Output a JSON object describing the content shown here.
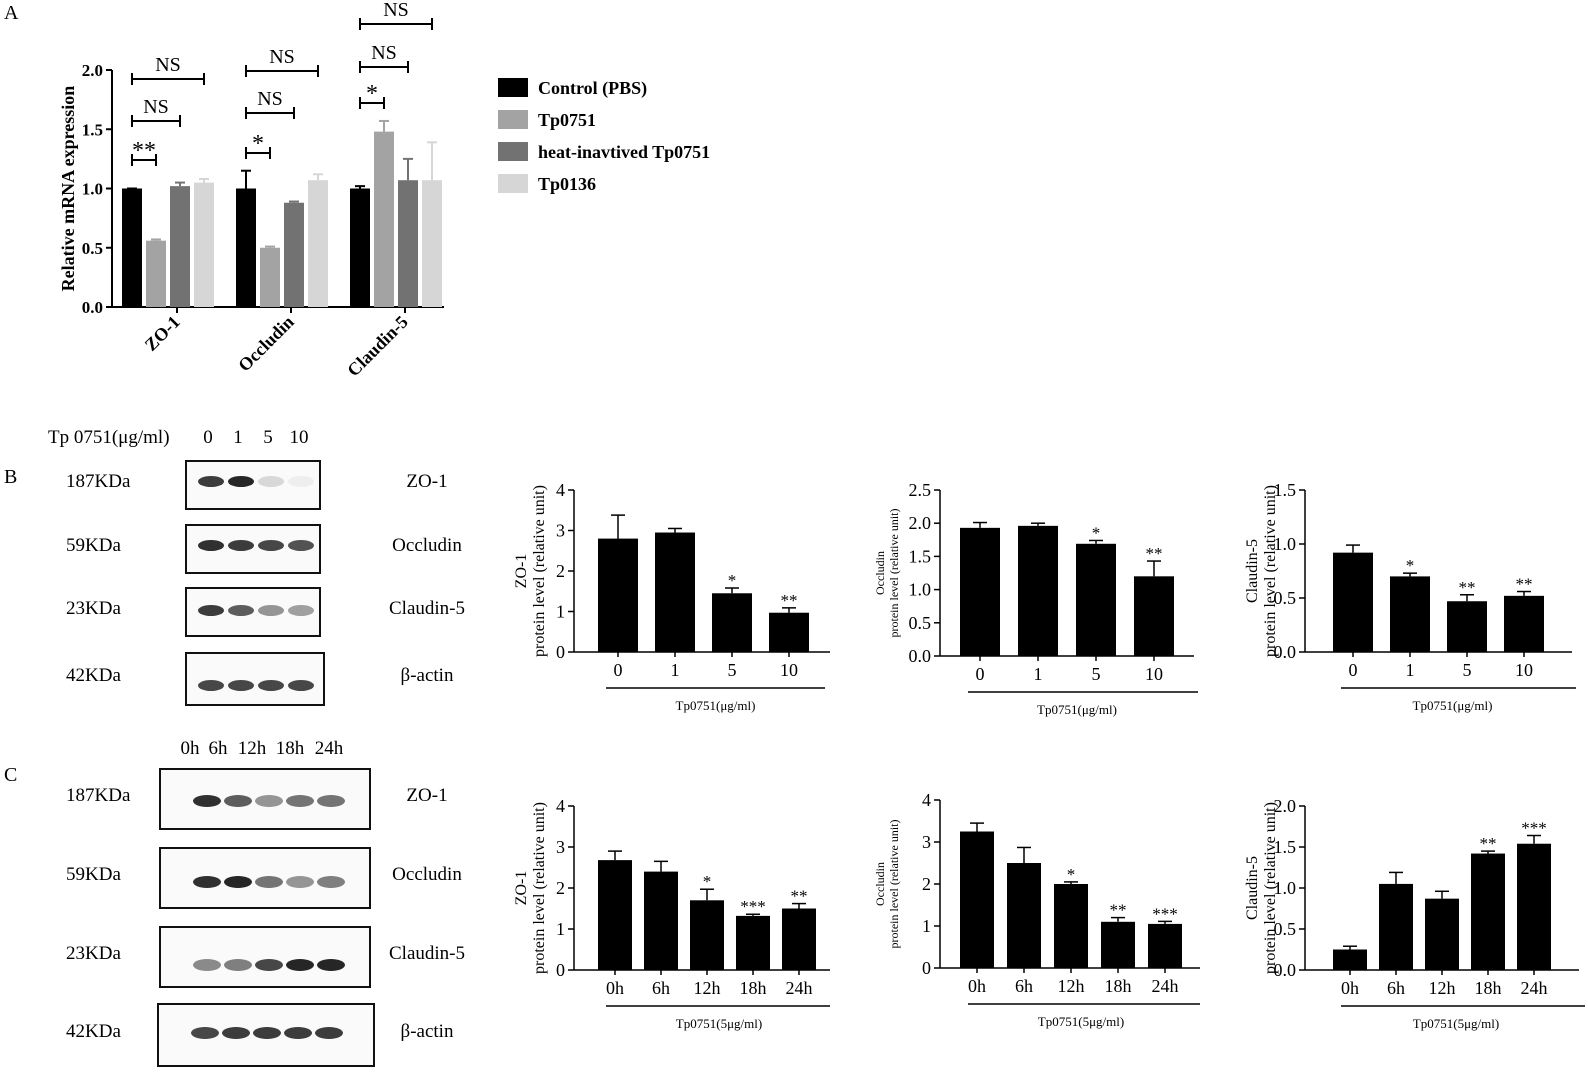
{
  "panels": {
    "a": "A",
    "b": "B",
    "c": "C"
  },
  "colors": {
    "control": "#000000",
    "tp0751": "#a3a3a3",
    "heat": "#727272",
    "tp0136": "#d6d6d6",
    "bar": "#000000"
  },
  "western_b": {
    "header_label": "Tp 0751(μg/ml)",
    "lanes": [
      "0",
      "1",
      "5",
      "10"
    ],
    "mw": [
      "187KDa",
      "59KDa",
      "23KDa",
      "42KDa"
    ],
    "proteins": [
      "ZO-1",
      "Occludin",
      "Claudin-5",
      "β-actin"
    ],
    "intensity": [
      [
        0.85,
        0.95,
        0.15,
        0.05
      ],
      [
        0.9,
        0.85,
        0.8,
        0.75
      ],
      [
        0.85,
        0.7,
        0.45,
        0.4
      ],
      [
        0.8,
        0.8,
        0.8,
        0.8
      ]
    ]
  },
  "western_c": {
    "lanes": [
      "0h",
      "6h",
      "12h",
      "18h",
      "24h"
    ],
    "mw": [
      "187KDa",
      "59KDa",
      "23KDa",
      "42KDa"
    ],
    "proteins": [
      "ZO-1",
      "Occludin",
      "Claudin-5",
      "β-actin"
    ],
    "intensity": [
      [
        0.9,
        0.7,
        0.45,
        0.6,
        0.6
      ],
      [
        0.9,
        0.95,
        0.6,
        0.45,
        0.55
      ],
      [
        0.5,
        0.55,
        0.8,
        0.95,
        0.95
      ],
      [
        0.8,
        0.85,
        0.85,
        0.85,
        0.85
      ]
    ]
  },
  "chart_data": [
    {
      "id": "A",
      "type": "bar",
      "ylabel": "Relative mRNA expression",
      "ylim": [
        0,
        2.0
      ],
      "yticks": [
        "0.0",
        "0.5",
        "1.0",
        "1.5",
        "2.0"
      ],
      "categories": [
        "ZO-1",
        "Occludin",
        "Claudin-5"
      ],
      "series": [
        {
          "name": "Control (PBS)",
          "values": [
            1.0,
            1.0,
            1.0
          ],
          "errors": [
            0.0,
            0.15,
            0.02
          ]
        },
        {
          "name": "Tp0751",
          "values": [
            0.56,
            0.5,
            1.48
          ],
          "errors": [
            0.01,
            0.01,
            0.09
          ]
        },
        {
          "name": "heat-inavtived Tp0751",
          "values": [
            1.02,
            0.88,
            1.07
          ],
          "errors": [
            0.03,
            0.01,
            0.18
          ]
        },
        {
          "name": "Tp0136",
          "values": [
            1.05,
            1.07,
            1.07
          ],
          "errors": [
            0.03,
            0.05,
            0.32
          ]
        }
      ],
      "annotations": [
        "**",
        "NS",
        "NS",
        "*",
        "NS",
        "NS",
        "*",
        "NS",
        "NS"
      ],
      "legend": "right"
    },
    {
      "id": "B1",
      "type": "bar",
      "ylabel_lines": [
        "ZO-1",
        "protein level (relative unit)"
      ],
      "xlabel": "Tp0751(μg/ml)",
      "categories": [
        "0",
        "1",
        "5",
        "10"
      ],
      "values": [
        2.8,
        2.95,
        1.45,
        0.97
      ],
      "errors": [
        0.58,
        0.1,
        0.13,
        0.12
      ],
      "sig": [
        "",
        "",
        "*",
        "**"
      ],
      "ylim": [
        0,
        4
      ],
      "yticks": [
        "0",
        "1",
        "2",
        "3",
        "4"
      ]
    },
    {
      "id": "B2",
      "type": "bar",
      "ylabel_lines": [
        "Occludin",
        "protein level (relative unit)"
      ],
      "xlabel": "Tp0751(μg/ml)",
      "categories": [
        "0",
        "1",
        "5",
        "10"
      ],
      "values": [
        1.93,
        1.96,
        1.69,
        1.2
      ],
      "errors": [
        0.08,
        0.04,
        0.05,
        0.23
      ],
      "sig": [
        "",
        "",
        "*",
        "**"
      ],
      "ylim": [
        0,
        2.5
      ],
      "yticks": [
        "0.0",
        "0.5",
        "1.0",
        "1.5",
        "2.0",
        "2.5"
      ]
    },
    {
      "id": "B3",
      "type": "bar",
      "ylabel_lines": [
        "Claudin-5",
        "protein level (relative unit)"
      ],
      "xlabel": "Tp0751(μg/ml)",
      "categories": [
        "0",
        "1",
        "5",
        "10"
      ],
      "values": [
        0.92,
        0.7,
        0.47,
        0.52
      ],
      "errors": [
        0.07,
        0.03,
        0.06,
        0.04
      ],
      "sig": [
        "",
        "*",
        "**",
        "**"
      ],
      "ylim": [
        0,
        1.5
      ],
      "yticks": [
        "0.0",
        "0.5",
        "1.0",
        "1.5"
      ]
    },
    {
      "id": "C1",
      "type": "bar",
      "ylabel_lines": [
        "ZO-1",
        "protein level (relative unit)"
      ],
      "xlabel": "Tp0751(5μg/ml)",
      "categories": [
        "0h",
        "6h",
        "12h",
        "18h",
        "24h"
      ],
      "values": [
        2.68,
        2.4,
        1.7,
        1.32,
        1.5
      ],
      "errors": [
        0.22,
        0.25,
        0.27,
        0.04,
        0.12
      ],
      "sig": [
        "",
        "",
        "*",
        "***",
        "**"
      ],
      "ylim": [
        0,
        4
      ],
      "yticks": [
        "0",
        "1",
        "2",
        "3",
        "4"
      ]
    },
    {
      "id": "C2",
      "type": "bar",
      "ylabel_lines": [
        "Occludin",
        "protein level (relative unit)"
      ],
      "xlabel": "Tp0751(5μg/ml)",
      "categories": [
        "0h",
        "6h",
        "12h",
        "18h",
        "24h"
      ],
      "values": [
        3.25,
        2.5,
        2.0,
        1.1,
        1.05
      ],
      "errors": [
        0.2,
        0.37,
        0.05,
        0.1,
        0.06
      ],
      "sig": [
        "",
        "",
        "*",
        "**",
        "***"
      ],
      "ylim": [
        0,
        4
      ],
      "yticks": [
        "0",
        "1",
        "2",
        "3",
        "4"
      ]
    },
    {
      "id": "C3",
      "type": "bar",
      "ylabel_lines": [
        "Claudin-5",
        "protein level (relative unit)"
      ],
      "xlabel": "Tp0751(5μg/ml)",
      "categories": [
        "0h",
        "6h",
        "12h",
        "18h",
        "24h"
      ],
      "values": [
        0.25,
        1.05,
        0.87,
        1.42,
        1.54
      ],
      "errors": [
        0.04,
        0.14,
        0.09,
        0.03,
        0.1
      ],
      "sig": [
        "",
        "",
        "",
        "**",
        "***"
      ],
      "ylim": [
        0,
        2.0
      ],
      "yticks": [
        "0.0",
        "0.5",
        "1.0",
        "1.5",
        "2.0"
      ]
    }
  ]
}
